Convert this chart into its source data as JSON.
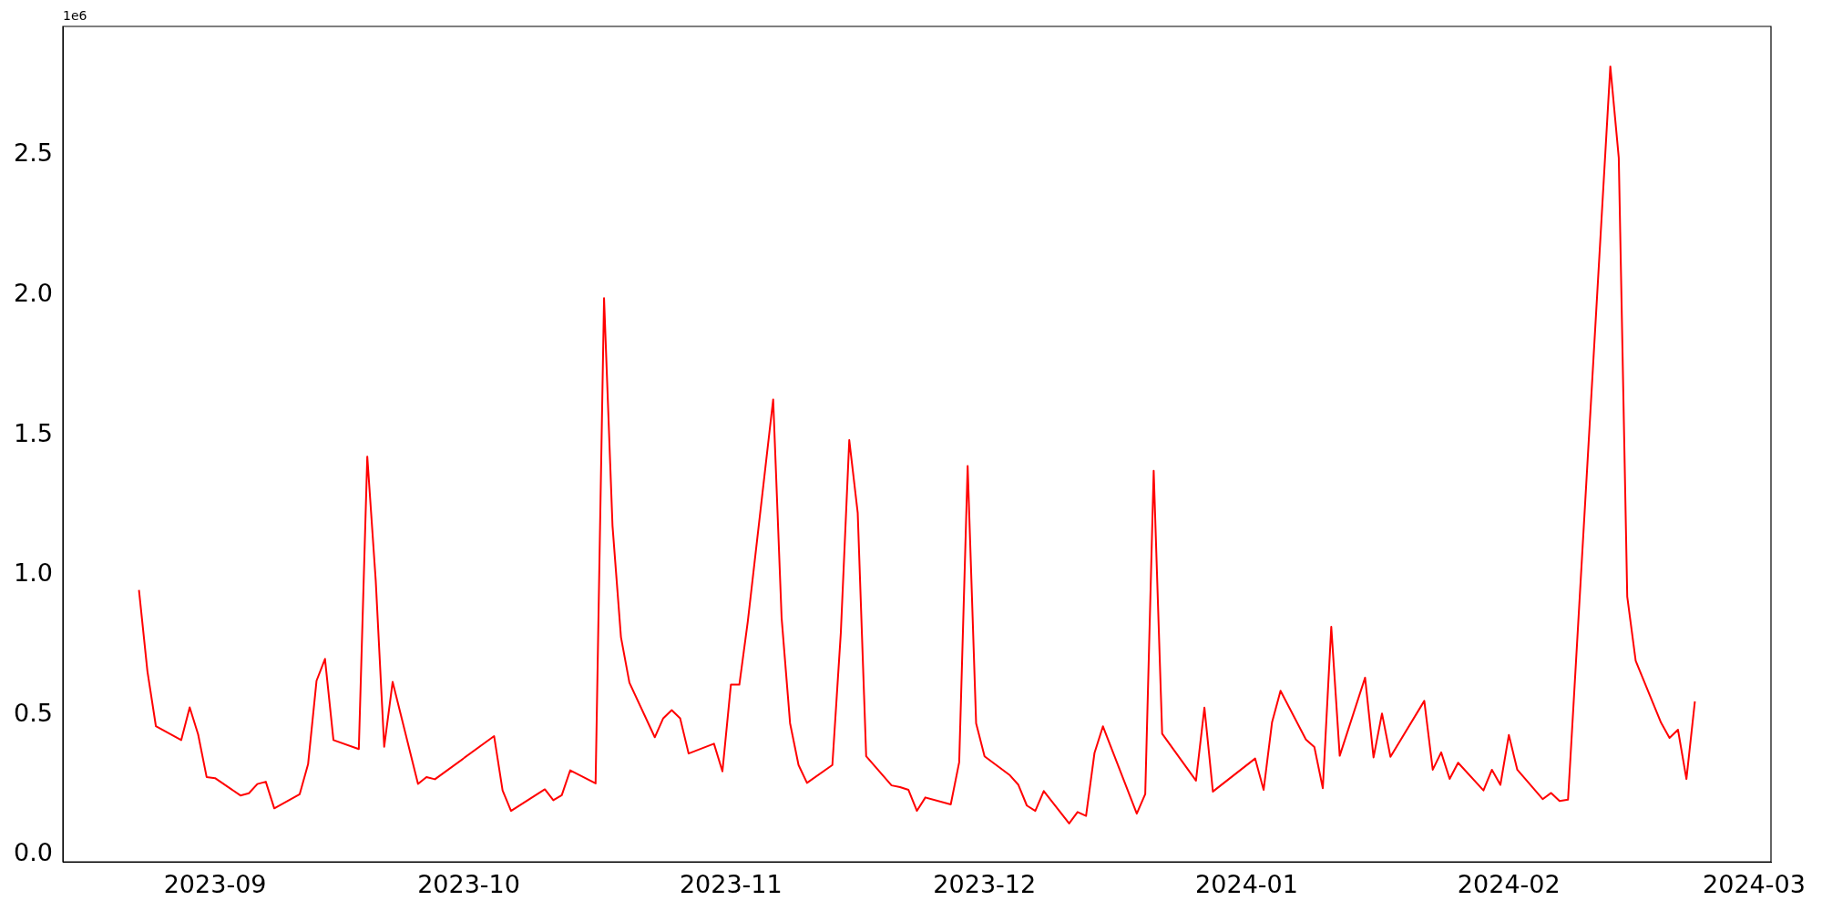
{
  "chart_data": {
    "type": "line",
    "x": [
      "2023-08-23",
      "2023-08-24",
      "2023-08-25",
      "2023-08-28",
      "2023-08-29",
      "2023-08-30",
      "2023-08-31",
      "2023-09-01",
      "2023-09-04",
      "2023-09-05",
      "2023-09-06",
      "2023-09-07",
      "2023-09-08",
      "2023-09-11",
      "2023-09-12",
      "2023-09-13",
      "2023-09-14",
      "2023-09-15",
      "2023-09-18",
      "2023-09-19",
      "2023-09-20",
      "2023-09-21",
      "2023-09-22",
      "2023-09-25",
      "2023-09-26",
      "2023-09-27",
      "2023-10-04",
      "2023-10-05",
      "2023-10-06",
      "2023-10-10",
      "2023-10-11",
      "2023-10-12",
      "2023-10-13",
      "2023-10-16",
      "2023-10-17",
      "2023-10-18",
      "2023-10-19",
      "2023-10-20",
      "2023-10-23",
      "2023-10-24",
      "2023-10-25",
      "2023-10-26",
      "2023-10-27",
      "2023-10-30",
      "2023-10-31",
      "2023-11-01",
      "2023-11-02",
      "2023-11-03",
      "2023-11-06",
      "2023-11-07",
      "2023-11-08",
      "2023-11-09",
      "2023-11-10",
      "2023-11-13",
      "2023-11-14",
      "2023-11-15",
      "2023-11-16",
      "2023-11-17",
      "2023-11-20",
      "2023-11-21",
      "2023-11-22",
      "2023-11-23",
      "2023-11-24",
      "2023-11-27",
      "2023-11-28",
      "2023-11-29",
      "2023-11-30",
      "2023-12-01",
      "2023-12-04",
      "2023-12-05",
      "2023-12-06",
      "2023-12-07",
      "2023-12-08",
      "2023-12-11",
      "2023-12-12",
      "2023-12-13",
      "2023-12-14",
      "2023-12-15",
      "2023-12-19",
      "2023-12-20",
      "2023-12-21",
      "2023-12-22",
      "2023-12-26",
      "2023-12-27",
      "2023-12-28",
      "2024-01-02",
      "2024-01-03",
      "2024-01-04",
      "2024-01-05",
      "2024-01-08",
      "2024-01-09",
      "2024-01-10",
      "2024-01-11",
      "2024-01-12",
      "2024-01-15",
      "2024-01-16",
      "2024-01-17",
      "2024-01-18",
      "2024-01-22",
      "2024-01-23",
      "2024-01-24",
      "2024-01-25",
      "2024-01-26",
      "2024-01-29",
      "2024-01-30",
      "2024-01-31",
      "2024-02-01",
      "2024-02-02",
      "2024-02-05",
      "2024-02-06",
      "2024-02-07",
      "2024-02-08",
      "2024-02-13",
      "2024-02-14",
      "2024-02-15",
      "2024-02-16",
      "2024-02-19",
      "2024-02-20",
      "2024-02-21",
      "2024-02-22",
      "2024-02-23"
    ],
    "series": [
      {
        "color": "#ff0000",
        "values": [
          0.946,
          0.656,
          0.46,
          0.41,
          0.527,
          0.43,
          0.278,
          0.274,
          0.212,
          0.22,
          0.253,
          0.261,
          0.166,
          0.216,
          0.324,
          0.622,
          0.7,
          0.41,
          0.378,
          1.423,
          0.98,
          0.386,
          0.618,
          0.253,
          0.278,
          0.27,
          0.424,
          0.23,
          0.157,
          0.234,
          0.195,
          0.213,
          0.302,
          0.255,
          1.989,
          1.176,
          0.778,
          0.615,
          0.42,
          0.488,
          0.517,
          0.488,
          0.362,
          0.397,
          0.298,
          0.608,
          0.608,
          0.834,
          1.627,
          0.846,
          0.47,
          0.321,
          0.257,
          0.321,
          0.793,
          1.482,
          1.221,
          0.352,
          0.248,
          0.242,
          0.232,
          0.157,
          0.205,
          0.18,
          0.331,
          1.389,
          0.47,
          0.352,
          0.284,
          0.25,
          0.176,
          0.157,
          0.228,
          0.112,
          0.153,
          0.139,
          0.364,
          0.459,
          0.147,
          0.217,
          1.372,
          0.433,
          0.265,
          0.526,
          0.226,
          0.344,
          0.232,
          0.474,
          0.586,
          0.412,
          0.385,
          0.238,
          0.815,
          0.354,
          0.633,
          0.348,
          0.505,
          0.35,
          0.55,
          0.304,
          0.366,
          0.271,
          0.329,
          0.23,
          0.304,
          0.25,
          0.428,
          0.304,
          0.199,
          0.221,
          0.192,
          0.197,
          2.817,
          2.49,
          0.923,
          0.693,
          0.472,
          0.418,
          0.447,
          0.271,
          0.548
        ]
      }
    ],
    "xlim": [
      "2023-08-14",
      "2024-03-03"
    ],
    "xticks": [
      {
        "value": "2023-09-01",
        "label": "2023-09"
      },
      {
        "value": "2023-10-01",
        "label": "2023-10"
      },
      {
        "value": "2023-11-01",
        "label": "2023-11"
      },
      {
        "value": "2023-12-01",
        "label": "2023-12"
      },
      {
        "value": "2024-01-01",
        "label": "2024-01"
      },
      {
        "value": "2024-02-01",
        "label": "2024-02"
      },
      {
        "value": "2024-03-01",
        "label": "2024-03"
      }
    ],
    "ylim": [
      -0.025,
      2.96
    ],
    "yticks": [
      {
        "value": 0,
        "label": "0.0"
      },
      0.5,
      {
        "value": 1,
        "label": "1.0"
      },
      1.5,
      {
        "value": 2,
        "label": "2.0"
      },
      2.5
    ],
    "annotations": [
      "1e6"
    ]
  }
}
